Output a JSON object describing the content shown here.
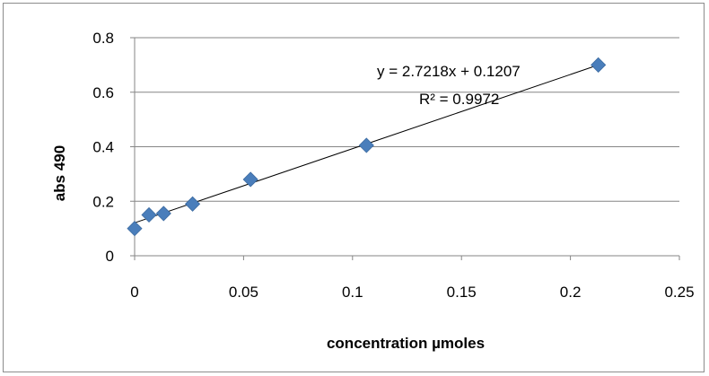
{
  "chart_data": {
    "type": "scatter",
    "title": "",
    "xlabel": "concentration µmoles",
    "ylabel": "abs 490",
    "xlim": [
      0,
      0.25
    ],
    "ylim": [
      0,
      0.8
    ],
    "xticks": [
      "0",
      "0.05",
      "0.1",
      "0.15",
      "0.2",
      "0.25"
    ],
    "yticks": [
      "0",
      "0.2",
      "0.4",
      "0.6",
      "0.8"
    ],
    "grid": "horizontal",
    "marker_color": "#4a7ebb",
    "series": [
      {
        "x": [
          0,
          0.0066,
          0.0133,
          0.0266,
          0.0532,
          0.1064,
          0.2128
        ],
        "y": [
          0.1,
          0.15,
          0.155,
          0.19,
          0.28,
          0.405,
          0.7
        ]
      }
    ],
    "trendline": {
      "slope": 2.7218,
      "intercept": 0.1207,
      "equation": "y = 2.7218x + 0.1207",
      "r2_label": "R² = 0.9972"
    }
  }
}
